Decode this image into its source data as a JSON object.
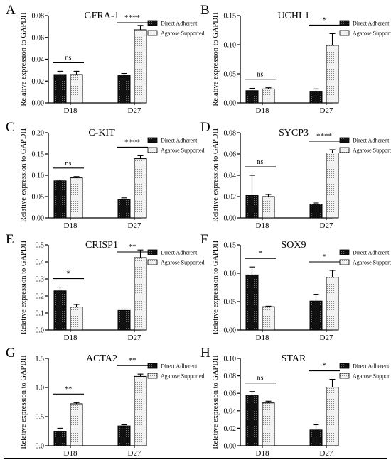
{
  "ylabel": "Relative expression to GAPDH",
  "legend": {
    "direct": "Direct Adherent",
    "agarose": "Agarose Supported"
  },
  "colors": {
    "direct": "#1f1f1f",
    "agarose": "#e8e8e8",
    "stroke": "#000000"
  },
  "chart_data": [
    {
      "type": "bar",
      "panel": "A",
      "title": "GFRA-1",
      "categories": [
        "D18",
        "D27"
      ],
      "ylabel": "Relative expression to GAPDH",
      "ylim": [
        0,
        0.08
      ],
      "yticks": [
        "0.00",
        "0.02",
        "0.04",
        "0.06",
        "0.08"
      ],
      "yvals": [
        0,
        0.02,
        0.04,
        0.06,
        0.08
      ],
      "series": [
        {
          "name": "Direct Adherent",
          "values": [
            0.026,
            0.025
          ],
          "errors": [
            0.003,
            0.002
          ]
        },
        {
          "name": "Agarose Supported",
          "values": [
            0.026,
            0.067
          ],
          "errors": [
            0.003,
            0.004
          ]
        }
      ],
      "sig": [
        "ns",
        "****"
      ]
    },
    {
      "type": "bar",
      "panel": "B",
      "title": "UCHL1",
      "categories": [
        "D18",
        "D27"
      ],
      "ylabel": "Relative expression to GAPDH",
      "ylim": [
        0,
        0.15
      ],
      "yticks": [
        "0.00",
        "0.05",
        "0.10",
        "0.15"
      ],
      "yvals": [
        0,
        0.05,
        0.1,
        0.15
      ],
      "series": [
        {
          "name": "Direct Adherent",
          "values": [
            0.021,
            0.02
          ],
          "errors": [
            0.004,
            0.004
          ]
        },
        {
          "name": "Agarose Supported",
          "values": [
            0.024,
            0.099
          ],
          "errors": [
            0.002,
            0.02
          ]
        }
      ],
      "sig": [
        "ns",
        "*"
      ]
    },
    {
      "type": "bar",
      "panel": "C",
      "title": "C-KIT",
      "categories": [
        "D18",
        "D27"
      ],
      "ylabel": "Relative expression to GAPDH",
      "ylim": [
        0,
        0.2
      ],
      "yticks": [
        "0.00",
        "0.05",
        "0.10",
        "0.15",
        "0.20"
      ],
      "yvals": [
        0,
        0.05,
        0.1,
        0.15,
        0.2
      ],
      "series": [
        {
          "name": "Direct Adherent",
          "values": [
            0.087,
            0.043
          ],
          "errors": [
            0.002,
            0.004
          ]
        },
        {
          "name": "Agarose Supported",
          "values": [
            0.094,
            0.139
          ],
          "errors": [
            0.003,
            0.007
          ]
        }
      ],
      "sig": [
        "ns",
        "****"
      ]
    },
    {
      "type": "bar",
      "panel": "D",
      "title": "SYCP3",
      "categories": [
        "D18",
        "D27"
      ],
      "ylabel": "Relative expression to GAPDH",
      "ylim": [
        0,
        0.08
      ],
      "yticks": [
        "0.00",
        "0.02",
        "0.04",
        "0.06",
        "0.08"
      ],
      "yvals": [
        0,
        0.02,
        0.04,
        0.06,
        0.08
      ],
      "series": [
        {
          "name": "Direct Adherent",
          "values": [
            0.021,
            0.013
          ],
          "errors": [
            0.019,
            0.001
          ]
        },
        {
          "name": "Agarose Supported",
          "values": [
            0.02,
            0.061
          ],
          "errors": [
            0.002,
            0.003
          ]
        }
      ],
      "sig": [
        "ns",
        "****"
      ]
    },
    {
      "type": "bar",
      "panel": "E",
      "title": "CRISP1",
      "categories": [
        "D18",
        "D27"
      ],
      "ylabel": "Relative expression to GAPDH",
      "ylim": [
        0,
        0.5
      ],
      "yticks": [
        "0.0",
        "0.1",
        "0.2",
        "0.3",
        "0.4",
        "0.5"
      ],
      "yvals": [
        0,
        0.1,
        0.2,
        0.3,
        0.4,
        0.5
      ],
      "series": [
        {
          "name": "Direct Adherent",
          "values": [
            0.23,
            0.115
          ],
          "errors": [
            0.022,
            0.008
          ]
        },
        {
          "name": "Agarose Supported",
          "values": [
            0.135,
            0.425
          ],
          "errors": [
            0.015,
            0.045
          ]
        }
      ],
      "sig": [
        "*",
        "**"
      ]
    },
    {
      "type": "bar",
      "panel": "F",
      "title": "SOX9",
      "categories": [
        "D18",
        "D27"
      ],
      "ylabel": "Relative expression to GAPDH",
      "ylim": [
        0,
        0.15
      ],
      "yticks": [
        "0.00",
        "0.05",
        "0.10",
        "0.15"
      ],
      "yvals": [
        0,
        0.05,
        0.1,
        0.15
      ],
      "series": [
        {
          "name": "Direct Adherent",
          "values": [
            0.097,
            0.051
          ],
          "errors": [
            0.014,
            0.012
          ]
        },
        {
          "name": "Agarose Supported",
          "values": [
            0.041,
            0.093
          ],
          "errors": [
            0.001,
            0.012
          ]
        }
      ],
      "sig": [
        "*",
        "*"
      ]
    },
    {
      "type": "bar",
      "panel": "G",
      "title": "ACTA2",
      "categories": [
        "D18",
        "D27"
      ],
      "ylabel": "Relative expression to GAPDH",
      "ylim": [
        0,
        1.5
      ],
      "yticks": [
        "0.0",
        "0.5",
        "1.0",
        "1.5"
      ],
      "yvals": [
        0,
        0.5,
        1.0,
        1.5
      ],
      "series": [
        {
          "name": "Direct Adherent",
          "values": [
            0.25,
            0.34
          ],
          "errors": [
            0.05,
            0.02
          ]
        },
        {
          "name": "Agarose Supported",
          "values": [
            0.72,
            1.19
          ],
          "errors": [
            0.02,
            0.04
          ]
        }
      ],
      "sig": [
        "**",
        "**"
      ]
    },
    {
      "type": "bar",
      "panel": "H",
      "title": "STAR",
      "categories": [
        "D18",
        "D27"
      ],
      "ylabel": "Relative expression to GAPDH",
      "ylim": [
        0,
        0.1
      ],
      "yticks": [
        "0.00",
        "0.02",
        "0.04",
        "0.06",
        "0.08",
        "0.10"
      ],
      "yvals": [
        0,
        0.02,
        0.04,
        0.06,
        0.08,
        0.1
      ],
      "series": [
        {
          "name": "Direct Adherent",
          "values": [
            0.058,
            0.018
          ],
          "errors": [
            0.004,
            0.006
          ]
        },
        {
          "name": "Agarose Supported",
          "values": [
            0.049,
            0.067
          ],
          "errors": [
            0.002,
            0.009
          ]
        }
      ],
      "sig": [
        "ns",
        "*"
      ]
    }
  ]
}
